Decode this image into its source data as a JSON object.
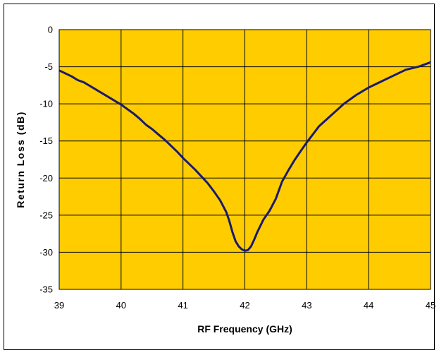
{
  "chart_data": {
    "type": "line",
    "title": "",
    "xlabel": "RF Frequency (GHz)",
    "ylabel": "Return Loss (dB)",
    "xlim": [
      39,
      45
    ],
    "ylim": [
      -35,
      0
    ],
    "xticks": [
      39,
      40,
      41,
      42,
      43,
      44,
      45
    ],
    "yticks": [
      0,
      -5,
      -10,
      -15,
      -20,
      -25,
      -30,
      -35
    ],
    "grid": true,
    "legend": "none",
    "colors": {
      "plot_background": "#FFCC00",
      "line": "#1A1A6E",
      "grid": "#000000"
    },
    "series": [
      {
        "x": [
          39.0,
          39.1,
          39.2,
          39.3,
          39.4,
          39.5,
          39.6,
          39.7,
          39.8,
          39.9,
          40.0,
          40.1,
          40.2,
          40.3,
          40.4,
          40.5,
          40.6,
          40.7,
          40.8,
          40.9,
          41.0,
          41.1,
          41.2,
          41.3,
          41.4,
          41.5,
          41.6,
          41.7,
          41.75,
          41.8,
          41.85,
          41.9,
          41.95,
          42.0,
          42.05,
          42.1,
          42.15,
          42.2,
          42.3,
          42.4,
          42.5,
          42.6,
          42.7,
          42.8,
          42.9,
          43.0,
          43.2,
          43.4,
          43.6,
          43.8,
          44.0,
          44.2,
          44.4,
          44.6,
          44.8,
          45.0
        ],
        "y": [
          -5.5,
          -5.9,
          -6.3,
          -6.8,
          -7.1,
          -7.6,
          -8.1,
          -8.6,
          -9.1,
          -9.6,
          -10.1,
          -10.7,
          -11.3,
          -12.0,
          -12.8,
          -13.4,
          -14.1,
          -14.8,
          -15.6,
          -16.4,
          -17.3,
          -18.1,
          -18.9,
          -19.8,
          -20.7,
          -21.8,
          -23.0,
          -24.6,
          -25.8,
          -27.3,
          -28.5,
          -29.2,
          -29.6,
          -29.8,
          -29.7,
          -29.2,
          -28.3,
          -27.3,
          -25.6,
          -24.4,
          -22.8,
          -20.5,
          -19.0,
          -17.6,
          -16.4,
          -15.2,
          -13.0,
          -11.5,
          -10.0,
          -8.8,
          -7.8,
          -7.0,
          -6.2,
          -5.4,
          -5.0,
          -4.4
        ]
      }
    ]
  }
}
